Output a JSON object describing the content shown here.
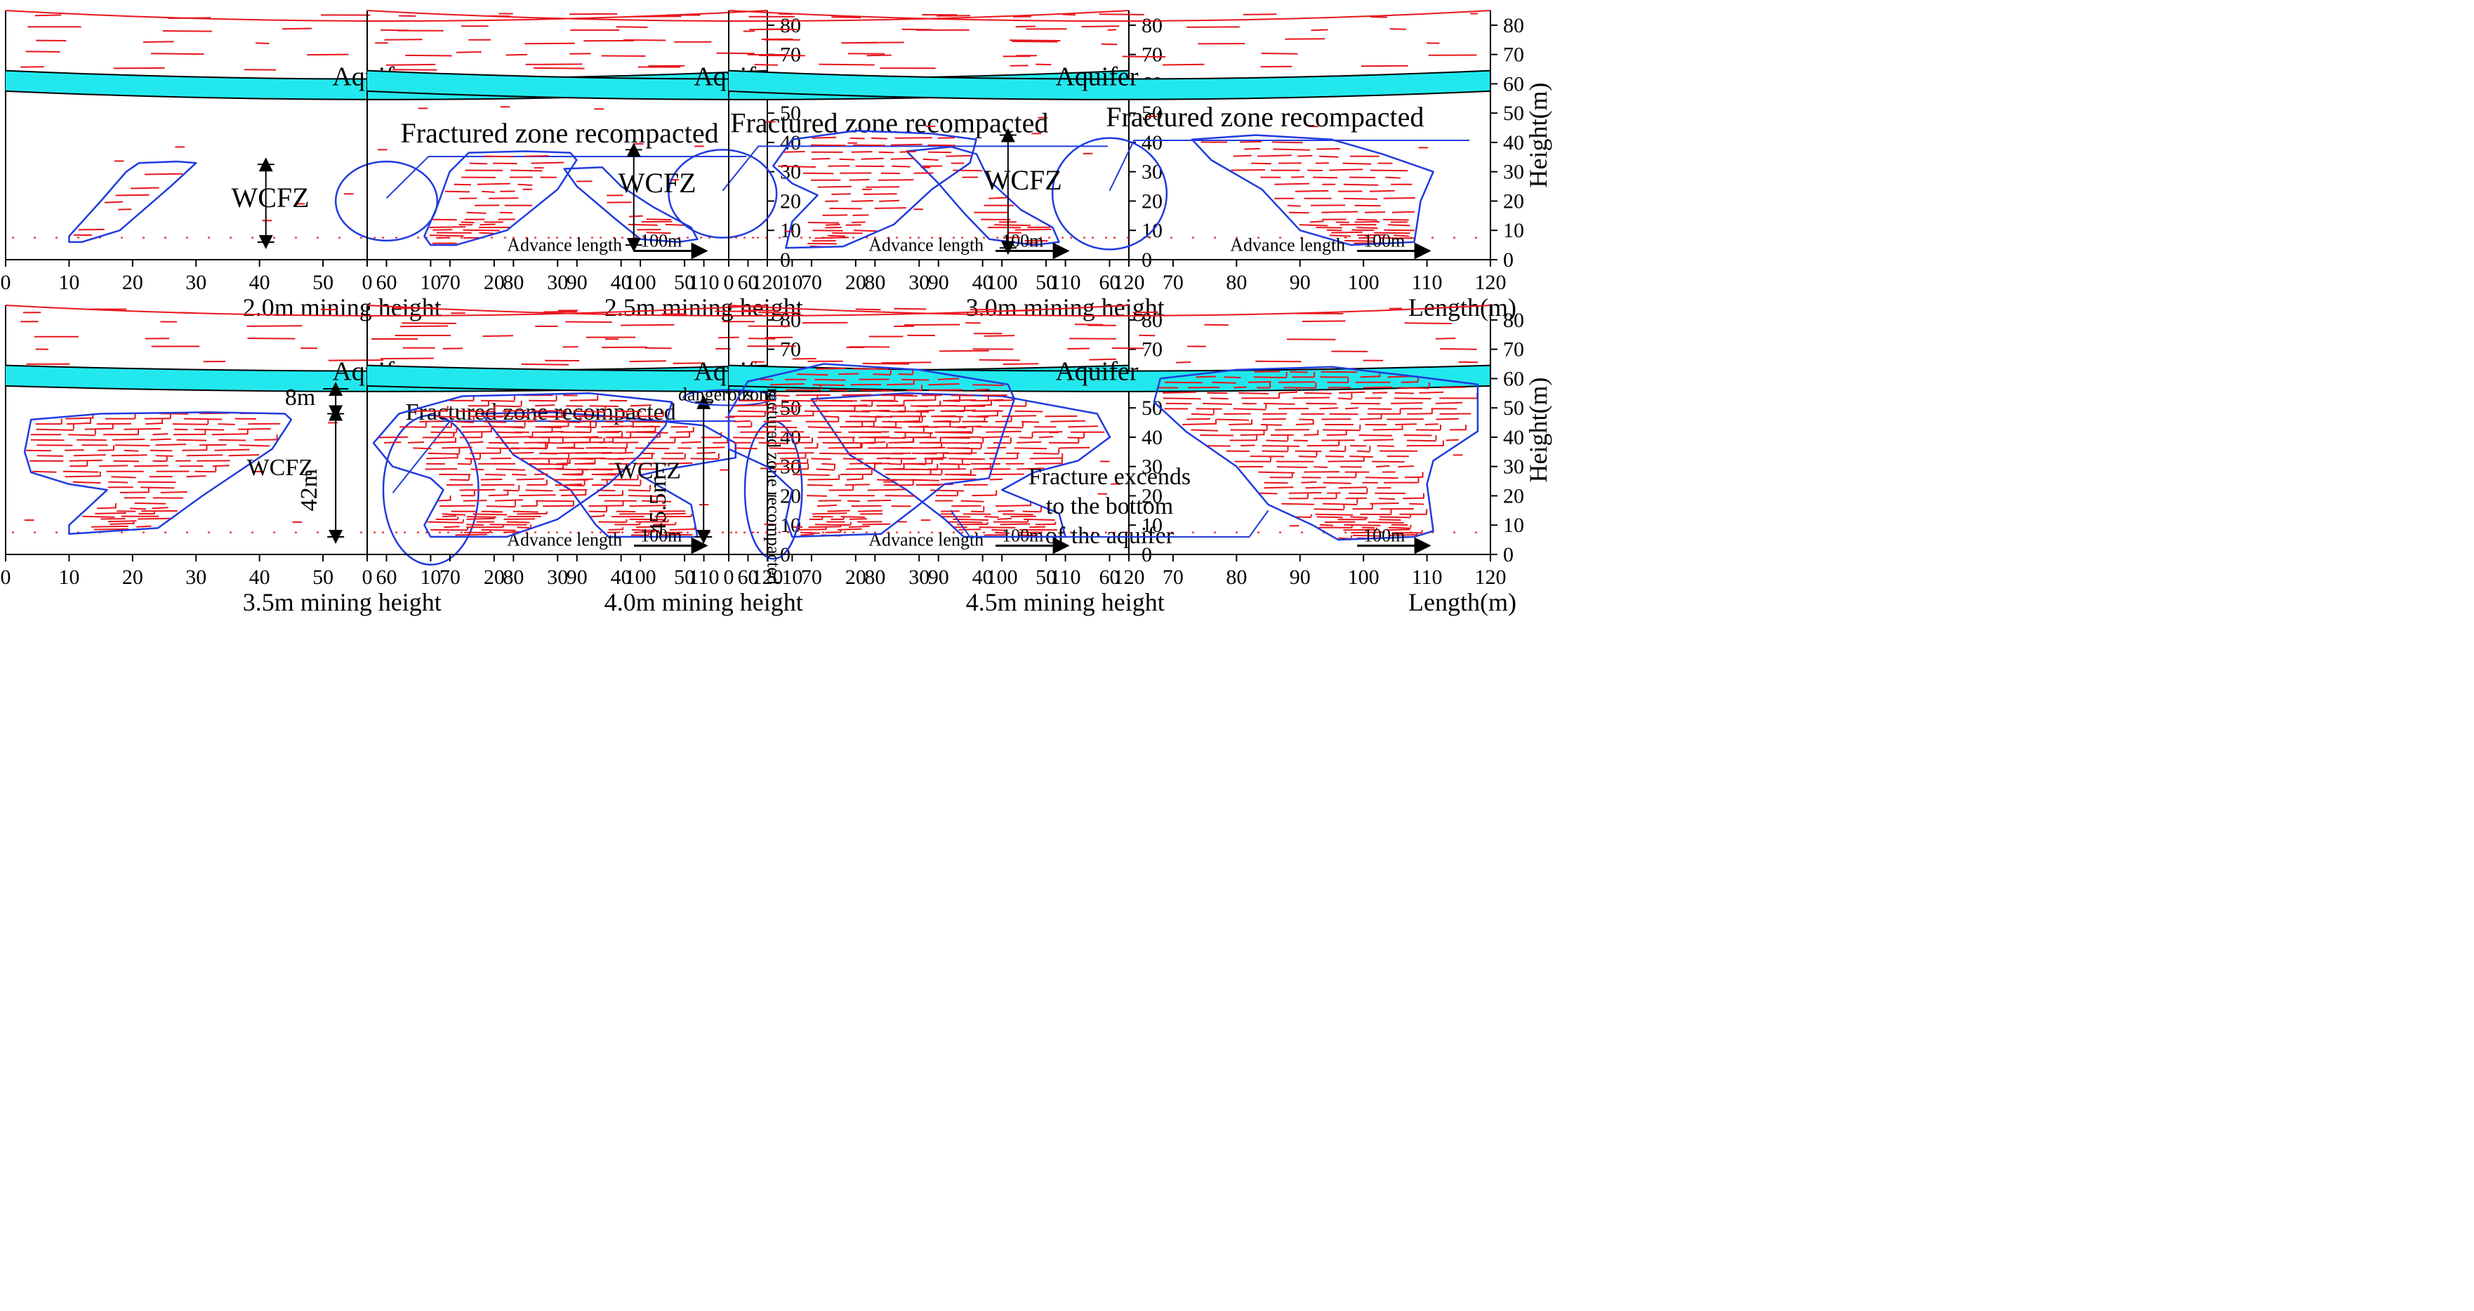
{
  "colors": {
    "fracture": "#e8141b",
    "outline": "#1f3bdf",
    "aquifer": "#22e8ee",
    "axis": "#000000"
  },
  "axes": {
    "x_ticks": [
      "0",
      "10",
      "20",
      "30",
      "40",
      "50",
      "60",
      "70",
      "80",
      "90",
      "100",
      "110",
      "120"
    ],
    "y_ticks": [
      "0",
      "10",
      "20",
      "30",
      "40",
      "50",
      "60",
      "70",
      "80"
    ],
    "x_label": "Length(m)",
    "y_label": "Height(m)"
  },
  "panels": [
    {
      "caption": "2.0m mining height",
      "aquifer_label": "Aquifer",
      "recompacted_label": "Fractured zone recompacted",
      "wcfz_label": "WCFZ",
      "scale_label": "Advance length",
      "scale_value": "100m"
    },
    {
      "caption": "2.5m mining height",
      "aquifer_label": "Aquifer",
      "recompacted_label": "Fractured zone recompacted",
      "wcfz_label": "WCFZ",
      "scale_label": "Advance length",
      "scale_value": "100m"
    },
    {
      "caption": "3.0m mining height",
      "aquifer_label": "Aquifer",
      "recompacted_label": "Fractured zone recompacted",
      "wcfz_label": "WCFZ",
      "scale_label": "Advance length",
      "scale_value": "100m"
    },
    {
      "caption": "3.5m mining height",
      "aquifer_label": "Aquifer",
      "recompacted_label": "Fractured zone recompacted",
      "wcfz_label": "WCFZ",
      "gap_label": "8m",
      "wcfz_height": "42m",
      "scale_label": "Advance length",
      "scale_value": "100m"
    },
    {
      "caption": "4.0m mining height",
      "aquifer_label": "Aquifer",
      "recompacted_label": "Fractured zone recompacted",
      "wcfz_label": "WCFZ",
      "wcfz_height": "45.5m",
      "dangerous_a": "dangerous",
      "dangerous_b": "zone",
      "scale_label": "Advance length",
      "scale_value": "100m"
    },
    {
      "caption": "4.5m mining height",
      "aquifer_label": "Aquifer",
      "note_lines": [
        "Fracture excends",
        "to the bottom",
        "of the aquifer"
      ],
      "scale_value": "100m"
    }
  ]
}
